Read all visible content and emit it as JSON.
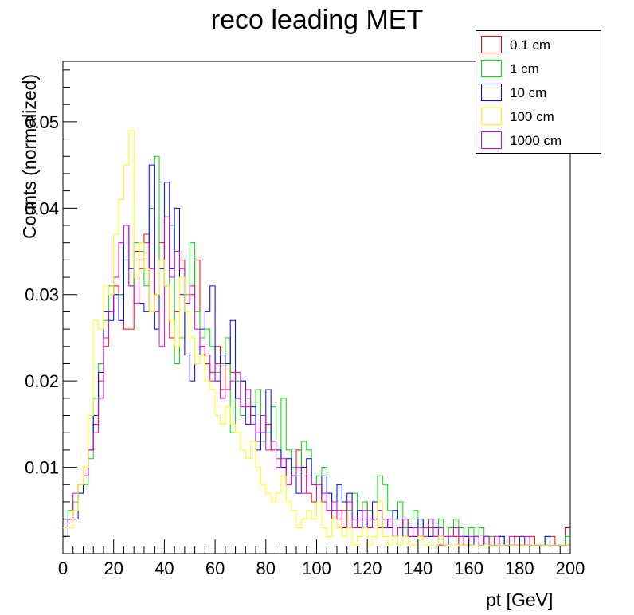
{
  "chart_data": {
    "type": "histogram",
    "title": "reco leading MET",
    "xlabel": "pt [GeV]",
    "ylabel": "Counts (normalized)",
    "xlim": [
      0,
      200
    ],
    "ylim": [
      0,
      0.057
    ],
    "bin_width": 2,
    "x_ticks": [
      "0",
      "20",
      "40",
      "60",
      "80",
      "100",
      "120",
      "140",
      "160",
      "180",
      "200"
    ],
    "y_ticks": [
      "0.01",
      "0.02",
      "0.03",
      "0.04",
      "0.05"
    ],
    "legend_position": "top-right",
    "series": [
      {
        "name": "0.1 cm",
        "color": "#ff0000",
        "values": [
          0.003,
          0.004,
          0.006,
          0.008,
          0.009,
          0.012,
          0.015,
          0.02,
          0.024,
          0.028,
          0.031,
          0.03,
          0.026,
          0.026,
          0.035,
          0.033,
          0.037,
          0.033,
          0.03,
          0.036,
          0.031,
          0.025,
          0.028,
          0.034,
          0.029,
          0.03,
          0.034,
          0.024,
          0.022,
          0.021,
          0.024,
          0.019,
          0.025,
          0.021,
          0.018,
          0.02,
          0.017,
          0.016,
          0.013,
          0.014,
          0.015,
          0.012,
          0.011,
          0.01,
          0.008,
          0.009,
          0.012,
          0.01,
          0.007,
          0.006,
          0.008,
          0.006,
          0.005,
          0.004,
          0.005,
          0.003,
          0.006,
          0.004,
          0.003,
          0.006,
          0.005,
          0.004,
          0.003,
          0.004,
          0.003,
          0.002,
          0.003,
          0.004,
          0.002,
          0.003,
          0.002,
          0.002,
          0.003,
          0.002,
          0.001,
          0.002,
          0.003,
          0.002,
          0.001,
          0.002,
          0.001,
          0.002,
          0.001,
          0.002,
          0.001,
          0.001,
          0.002,
          0.001,
          0.001,
          0.002,
          0.001,
          0.001,
          0.002,
          0.001,
          0.001,
          0.001,
          0.002,
          0.001,
          0.001,
          0.003
        ]
      },
      {
        "name": "1 cm",
        "color": "#00dd00",
        "values": [
          0.004,
          0.005,
          0.006,
          0.007,
          0.008,
          0.011,
          0.018,
          0.022,
          0.027,
          0.031,
          0.03,
          0.03,
          0.034,
          0.031,
          0.036,
          0.035,
          0.031,
          0.04,
          0.046,
          0.033,
          0.031,
          0.038,
          0.022,
          0.025,
          0.03,
          0.036,
          0.028,
          0.025,
          0.026,
          0.024,
          0.021,
          0.022,
          0.025,
          0.014,
          0.02,
          0.016,
          0.018,
          0.015,
          0.019,
          0.013,
          0.014,
          0.017,
          0.011,
          0.018,
          0.012,
          0.01,
          0.009,
          0.013,
          0.012,
          0.008,
          0.009,
          0.01,
          0.007,
          0.006,
          0.008,
          0.006,
          0.005,
          0.007,
          0.005,
          0.006,
          0.005,
          0.004,
          0.009,
          0.008,
          0.005,
          0.004,
          0.006,
          0.003,
          0.004,
          0.005,
          0.003,
          0.004,
          0.002,
          0.003,
          0.004,
          0.002,
          0.003,
          0.004,
          0.003,
          0.002,
          0.003,
          0.002,
          0.003,
          0.002,
          0.002,
          0.001,
          0.002,
          0.001,
          0.002,
          0.001,
          0.001,
          0.002,
          0.001,
          0.001,
          0.001,
          0.002,
          0.001,
          0.001,
          0.001,
          0.002
        ]
      },
      {
        "name": "10 cm",
        "color": "#0000ff",
        "values": [
          0.002,
          0.004,
          0.004,
          0.007,
          0.009,
          0.012,
          0.016,
          0.021,
          0.028,
          0.027,
          0.03,
          0.027,
          0.038,
          0.033,
          0.032,
          0.029,
          0.028,
          0.045,
          0.026,
          0.033,
          0.043,
          0.033,
          0.04,
          0.03,
          0.023,
          0.02,
          0.022,
          0.026,
          0.028,
          0.031,
          0.02,
          0.023,
          0.022,
          0.027,
          0.018,
          0.02,
          0.015,
          0.017,
          0.012,
          0.014,
          0.019,
          0.013,
          0.012,
          0.01,
          0.011,
          0.009,
          0.007,
          0.01,
          0.011,
          0.008,
          0.006,
          0.009,
          0.007,
          0.005,
          0.008,
          0.006,
          0.007,
          0.004,
          0.005,
          0.003,
          0.004,
          0.006,
          0.005,
          0.004,
          0.003,
          0.005,
          0.004,
          0.002,
          0.003,
          0.002,
          0.004,
          0.003,
          0.002,
          0.003,
          0.002,
          0.001,
          0.002,
          0.003,
          0.002,
          0.002,
          0.001,
          0.002,
          0.001,
          0.002,
          0.001,
          0.001,
          0.002,
          0.001,
          0.001,
          0.001,
          0.002,
          0.001,
          0.001,
          0.001,
          0.001,
          0.002,
          0.001,
          0.001,
          0.001,
          0.001
        ]
      },
      {
        "name": "100 cm",
        "color": "#ffff00",
        "values": [
          0.003,
          0.003,
          0.005,
          0.008,
          0.01,
          0.016,
          0.027,
          0.026,
          0.031,
          0.03,
          0.037,
          0.041,
          0.045,
          0.049,
          0.032,
          0.036,
          0.033,
          0.028,
          0.03,
          0.034,
          0.031,
          0.027,
          0.024,
          0.032,
          0.028,
          0.025,
          0.022,
          0.023,
          0.02,
          0.019,
          0.016,
          0.015,
          0.017,
          0.015,
          0.014,
          0.012,
          0.011,
          0.013,
          0.01,
          0.008,
          0.007,
          0.006,
          0.007,
          0.009,
          0.006,
          0.005,
          0.003,
          0.004,
          0.005,
          0.004,
          0.006,
          0.003,
          0.002,
          0.004,
          0.003,
          0.002,
          0.003,
          0.001,
          0.002,
          0.003,
          0.001,
          0.002,
          0.006,
          0.002,
          0.001,
          0.002,
          0.001,
          0.002,
          0.001,
          0.001,
          0.002,
          0.001,
          0.001,
          0.001,
          0.002,
          0.001,
          0.001,
          0.001,
          0.001,
          0.001,
          0.001,
          0.001,
          0.001,
          0.001,
          0.001,
          0.001,
          0.001,
          0.001,
          0.001,
          0.001,
          0.001,
          0.001,
          0.001,
          0.001,
          0.001,
          0.001,
          0.001,
          0.001,
          0.001,
          0.001
        ]
      },
      {
        "name": "1000 cm",
        "color": "#dd00dd",
        "values": [
          0.003,
          0.004,
          0.007,
          0.008,
          0.009,
          0.012,
          0.014,
          0.018,
          0.025,
          0.028,
          0.032,
          0.036,
          0.038,
          0.031,
          0.029,
          0.034,
          0.036,
          0.033,
          0.028,
          0.024,
          0.039,
          0.032,
          0.035,
          0.033,
          0.029,
          0.031,
          0.026,
          0.024,
          0.023,
          0.02,
          0.022,
          0.018,
          0.019,
          0.02,
          0.021,
          0.017,
          0.019,
          0.015,
          0.014,
          0.016,
          0.012,
          0.013,
          0.01,
          0.011,
          0.008,
          0.009,
          0.01,
          0.007,
          0.009,
          0.008,
          0.006,
          0.007,
          0.005,
          0.006,
          0.004,
          0.005,
          0.006,
          0.003,
          0.004,
          0.005,
          0.003,
          0.004,
          0.005,
          0.003,
          0.004,
          0.002,
          0.003,
          0.004,
          0.002,
          0.003,
          0.002,
          0.003,
          0.004,
          0.002,
          0.003,
          0.002,
          0.002,
          0.003,
          0.002,
          0.001,
          0.002,
          0.002,
          0.001,
          0.002,
          0.001,
          0.002,
          0.001,
          0.001,
          0.002,
          0.001,
          0.001,
          0.002,
          0.001,
          0.001,
          0.001,
          0.001,
          0.001,
          0.001,
          0.001,
          0.001
        ]
      }
    ]
  }
}
